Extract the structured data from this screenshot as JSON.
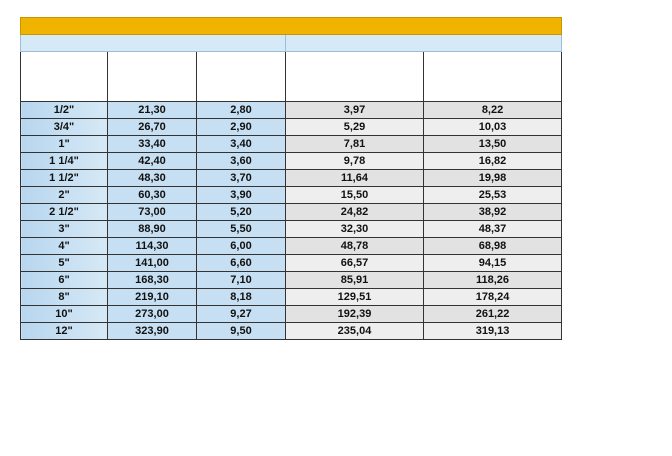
{
  "table": {
    "rows": [
      [
        "1/2\"",
        "21,30",
        "2,80",
        "3,97",
        "8,22"
      ],
      [
        "3/4\"",
        "26,70",
        "2,90",
        "5,29",
        "10,03"
      ],
      [
        "1\"",
        "33,40",
        "3,40",
        "7,81",
        "13,50"
      ],
      [
        "1 1/4\"",
        "42,40",
        "3,60",
        "9,78",
        "16,82"
      ],
      [
        "1 1/2\"",
        "48,30",
        "3,70",
        "11,64",
        "19,98"
      ],
      [
        "2\"",
        "60,30",
        "3,90",
        "15,50",
        "25,53"
      ],
      [
        "2 1/2\"",
        "73,00",
        "5,20",
        "24,82",
        "38,92"
      ],
      [
        "3\"",
        "88,90",
        "5,50",
        "32,30",
        "48,37"
      ],
      [
        "4\"",
        "114,30",
        "6,00",
        "48,78",
        "68,98"
      ],
      [
        "5\"",
        "141,00",
        "6,60",
        "66,57",
        "94,15"
      ],
      [
        "6\"",
        "168,30",
        "7,10",
        "85,91",
        "118,26"
      ],
      [
        "8\"",
        "219,10",
        "8,18",
        "129,51",
        "178,24"
      ],
      [
        "10\"",
        "273,00",
        "9,27",
        "192,39",
        "261,22"
      ],
      [
        "12\"",
        "323,90",
        "9,50",
        "235,04",
        "319,13"
      ]
    ]
  }
}
